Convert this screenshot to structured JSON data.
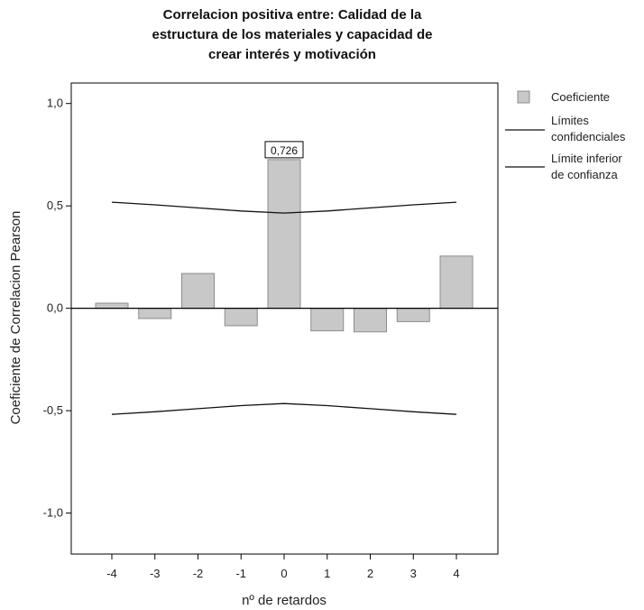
{
  "chart_data": {
    "type": "bar",
    "title_lines": [
      "Correlacion positiva entre: Calidad de la",
      "estructura de los materiales y capacidad de",
      "crear interés y motivación"
    ],
    "xlabel": "nº de retardos",
    "ylabel": "Coeficiente de Correlacion Pearson",
    "categories": [
      "-4",
      "-3",
      "-2",
      "-1",
      "0",
      "1",
      "2",
      "3",
      "4"
    ],
    "ylim": [
      -1.2,
      1.1
    ],
    "y_ticks": [
      {
        "value": 1.0,
        "label": "1,0"
      },
      {
        "value": 0.5,
        "label": "0,5"
      },
      {
        "value": 0.0,
        "label": "0,0"
      },
      {
        "value": -0.5,
        "label": "-0,5"
      },
      {
        "value": -1.0,
        "label": "-1,0"
      }
    ],
    "series": [
      {
        "name": "Coeficiente",
        "values": [
          0.025,
          -0.05,
          0.17,
          -0.085,
          0.726,
          -0.11,
          -0.115,
          -0.065,
          0.255
        ],
        "color": "#c8c8c8",
        "stroke": "#8c8c8c"
      }
    ],
    "upper_limit": {
      "name": "Límites confidenciales",
      "name_lines": [
        "Límites",
        "confidenciales"
      ],
      "values": [
        0.518,
        0.505,
        0.49,
        0.475,
        0.465,
        0.475,
        0.49,
        0.505,
        0.518
      ],
      "color": "#111111"
    },
    "lower_limit": {
      "name": "Límite inferior de confianza",
      "name_lines": [
        "Límite inferior",
        "de confianza"
      ],
      "values": [
        -0.518,
        -0.505,
        -0.49,
        -0.475,
        -0.465,
        -0.475,
        -0.49,
        -0.505,
        -0.518
      ],
      "color": "#111111"
    },
    "annotation": {
      "category": "0",
      "label": "0,726"
    },
    "grid": false,
    "legend_position": "right"
  }
}
